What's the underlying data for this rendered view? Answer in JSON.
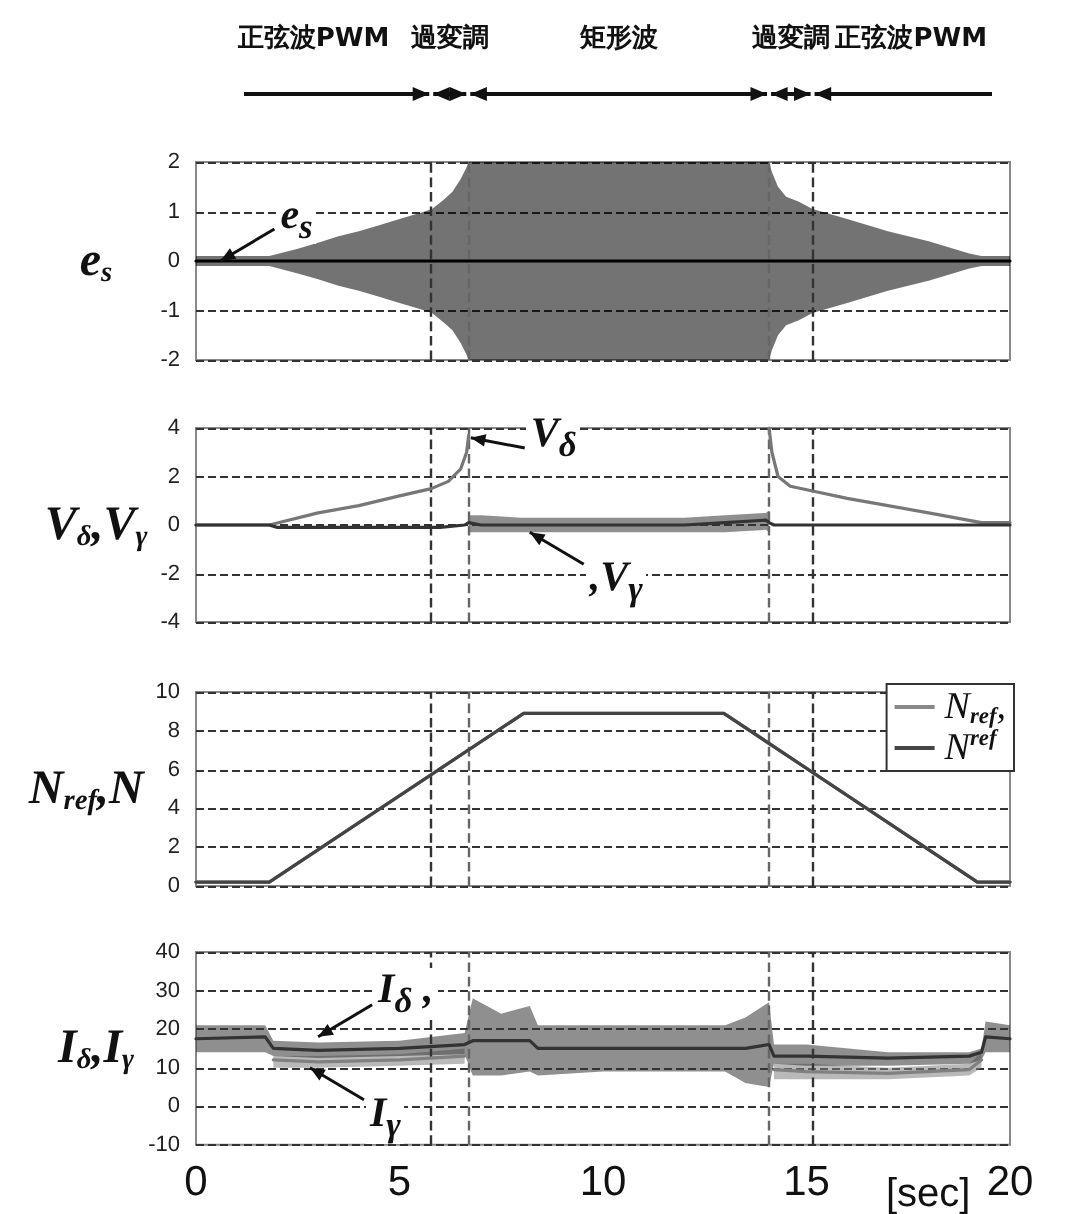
{
  "chart_data": [
    {
      "type": "line",
      "ylabel": "e$_{s}$",
      "xlim": [
        0,
        20
      ],
      "ylim": [
        -2,
        2
      ],
      "xticks": [
        0,
        5,
        10,
        15,
        20
      ],
      "yticks": [
        -2,
        -1,
        0,
        1,
        2
      ],
      "tick_labels": "y",
      "grid": "y",
      "marker": "none",
      "annotations": [
        "正弦波PWM",
        "過変調",
        "矩形波",
        "過変調",
        "正弦波PWM",
        {
          "text": "e$_{s}$",
          "x": 0.6,
          "y": 0
        }
      ],
      "ref_lines": [
        {
          "axis": "x",
          "value": 5.78,
          "line_style": "dashed",
          "color": "#333333"
        },
        {
          "axis": "x",
          "value": 6.69,
          "line_style": "dashed",
          "color": "#666666"
        },
        {
          "axis": "x",
          "value": 14.08,
          "line_style": "dashed",
          "color": "#666666"
        },
        {
          "axis": "x",
          "value": 15.15,
          "line_style": "dashed",
          "color": "#333333"
        }
      ],
      "series": [
        {
          "color": "#000000",
          "x": [
            0,
            1.8,
            2.5,
            3,
            3.5,
            4,
            4.5,
            5,
            5.5,
            5.8,
            6.1,
            6.3,
            6.5,
            6.65,
            6.7,
            14.08,
            14.15,
            14.3,
            14.5,
            14.8,
            15.15,
            16,
            17,
            18,
            19,
            19.3,
            20
          ],
          "values": [
            0,
            0,
            0,
            0,
            0,
            0,
            0,
            0,
            0,
            0,
            0,
            0,
            0,
            0,
            0,
            0,
            0,
            0,
            0,
            0,
            0,
            0,
            0,
            0,
            0,
            0,
            0
          ],
          "upper": [
            0.1,
            0.1,
            0.25,
            0.37,
            0.5,
            0.6,
            0.72,
            0.85,
            0.97,
            1.05,
            1.25,
            1.4,
            1.65,
            1.9,
            2,
            2,
            1.8,
            1.5,
            1.3,
            1.2,
            1.05,
            0.85,
            0.6,
            0.4,
            0.15,
            0.1,
            0.1
          ],
          "lower": [
            -0.1,
            -0.1,
            -0.25,
            -0.37,
            -0.5,
            -0.6,
            -0.72,
            -0.85,
            -0.97,
            -1.05,
            -1.25,
            -1.4,
            -1.65,
            -1.9,
            -2,
            -2,
            -1.8,
            -1.5,
            -1.3,
            -1.2,
            -1.05,
            -0.85,
            -0.6,
            -0.4,
            -0.15,
            -0.1,
            -0.1
          ]
        }
      ]
    },
    {
      "type": "line",
      "ylabel": "V$_{δ}$,V$_{γ}$",
      "xlim": [
        0,
        20
      ],
      "ylim": [
        -4,
        4
      ],
      "xticks": [
        0,
        5,
        10,
        15,
        20
      ],
      "yticks": [
        -4,
        -2,
        0,
        2,
        4
      ],
      "tick_labels": "y",
      "grid": "y",
      "marker": "none",
      "annotations": [
        {
          "text": "V$_{δ}$",
          "x": 6.75,
          "y": 3.6
        },
        {
          "text": ",V$_{γ}$",
          "x": 8.2,
          "y": -0.3
        }
      ],
      "ref_lines": [
        {
          "axis": "x",
          "value": 5.78,
          "line_style": "dashed",
          "color": "#333333"
        },
        {
          "axis": "x",
          "value": 6.69,
          "line_style": "dashed",
          "color": "#666666"
        },
        {
          "axis": "x",
          "value": 14.08,
          "line_style": "dashed",
          "color": "#666666"
        },
        {
          "axis": "x",
          "value": 15.15,
          "line_style": "dashed",
          "color": "#333333"
        }
      ],
      "series": [
        {
          "color": "#777777",
          "x": [
            0,
            1.8,
            3,
            4,
            5,
            5.78,
            6.2,
            6.5,
            6.65,
            6.7,
            10,
            14.08,
            14.15,
            14.3,
            14.6,
            15.15,
            16,
            17,
            18,
            19.3,
            20
          ],
          "values": [
            0,
            0,
            0.5,
            0.8,
            1.2,
            1.5,
            1.8,
            2.3,
            3.0,
            3.7,
            null,
            4,
            3,
            2.0,
            1.6,
            1.4,
            1.1,
            0.8,
            0.5,
            0.1,
            0.1
          ]
        },
        {
          "color": "#333333",
          "x": [
            0,
            1.8,
            2,
            6,
            6.6,
            6.7,
            7,
            8,
            9,
            10,
            11,
            12,
            13,
            14,
            14.08,
            14.2,
            20
          ],
          "values": [
            0,
            0,
            -0.1,
            -0.1,
            0,
            0.1,
            0,
            0,
            0,
            0,
            0,
            0,
            0.1,
            0.2,
            0.1,
            0,
            0
          ],
          "upper": [
            null,
            null,
            null,
            null,
            null,
            0.4,
            0.4,
            0.3,
            0.3,
            0.3,
            0.3,
            0.3,
            0.4,
            0.5,
            0.6,
            null,
            null
          ],
          "lower": [
            null,
            null,
            null,
            null,
            null,
            -0.3,
            -0.3,
            -0.3,
            -0.3,
            -0.3,
            -0.3,
            -0.3,
            -0.3,
            -0.2,
            -0.3,
            null,
            null
          ]
        }
      ]
    },
    {
      "type": "line",
      "ylabel": "N$_{ref}$,N",
      "xlim": [
        0,
        20
      ],
      "ylim": [
        0,
        10
      ],
      "xticks": [
        0,
        5,
        10,
        15,
        20
      ],
      "yticks": [
        0,
        2,
        4,
        6,
        8,
        10
      ],
      "tick_labels": "y",
      "grid": "y",
      "marker": "none",
      "legend": "top right",
      "ref_lines": [
        {
          "axis": "x",
          "value": 5.78,
          "line_style": "dashed",
          "color": "#333333"
        },
        {
          "axis": "x",
          "value": 6.69,
          "line_style": "dashed",
          "color": "#666666"
        },
        {
          "axis": "x",
          "value": 14.08,
          "line_style": "dashed",
          "color": "#666666"
        },
        {
          "axis": "x",
          "value": 15.15,
          "line_style": "dashed",
          "color": "#333333"
        }
      ],
      "series": [
        {
          "name": "N$_{ref}$,",
          "color": "#888888",
          "x": [
            0,
            1.8,
            8.05,
            12.97,
            19.2,
            20
          ],
          "values": [
            0.2,
            0.2,
            8.9,
            8.9,
            0.2,
            0.2
          ]
        },
        {
          "name": "N$^{ref}$",
          "color": "#444444",
          "x": [
            0,
            1.8,
            8.05,
            12.97,
            19.2,
            20
          ],
          "values": [
            0.2,
            0.2,
            8.9,
            8.9,
            0.2,
            0.2
          ]
        }
      ]
    },
    {
      "type": "line",
      "ylabel": "I$_{δ}$,I$_{γ}$",
      "xlabel": "[sec]",
      "xlim": [
        0,
        20
      ],
      "ylim": [
        -10,
        40
      ],
      "xticks": [
        0,
        5,
        10,
        15,
        20
      ],
      "yticks": [
        -10,
        0,
        10,
        20,
        30,
        40
      ],
      "grid": "y",
      "marker": "none",
      "annotations": [
        {
          "text": "I$_{δ}$ ,",
          "x": 3,
          "y": 18
        },
        {
          "text": "I$_{γ}$",
          "x": 2.8,
          "y": 10
        }
      ],
      "ref_lines": [
        {
          "axis": "x",
          "value": 5.78,
          "line_style": "dashed",
          "color": "#333333"
        },
        {
          "axis": "x",
          "value": 6.69,
          "line_style": "dashed",
          "color": "#666666"
        },
        {
          "axis": "x",
          "value": 14.08,
          "line_style": "dashed",
          "color": "#666666"
        },
        {
          "axis": "x",
          "value": 15.15,
          "line_style": "dashed",
          "color": "#333333"
        }
      ],
      "series": [
        {
          "color": "#808080",
          "x": [
            1.9,
            3,
            5,
            6.6,
            10,
            14.2,
            15,
            17,
            19,
            19.3
          ],
          "values": [
            12,
            11.5,
            12,
            13,
            null,
            9.5,
            9,
            8.5,
            9.5,
            12
          ],
          "lower": [
            10,
            10,
            10.5,
            11,
            null,
            7,
            7,
            7,
            8,
            10
          ],
          "upper": [
            13,
            13,
            13.5,
            15,
            null,
            11,
            11,
            10,
            11,
            14
          ]
        },
        {
          "color": "#333333",
          "x": [
            0,
            1.7,
            1.9,
            3,
            5,
            6.6,
            6.8,
            7.5,
            8.2,
            8.4,
            10,
            12,
            13,
            13.5,
            14.08,
            14.2,
            15,
            17,
            19,
            19.3,
            19.4,
            20
          ],
          "values": [
            17.5,
            18,
            15,
            14.5,
            15,
            16,
            17,
            17,
            17,
            15,
            15,
            15,
            15,
            15,
            16,
            13,
            13,
            12.5,
            13,
            14,
            18,
            17.5
          ],
          "lower": [
            14,
            14,
            13,
            12.5,
            13,
            13.5,
            8,
            8,
            9,
            8,
            9,
            9,
            9,
            6,
            5,
            11,
            10.5,
            10.5,
            11,
            12,
            14,
            14
          ],
          "upper": [
            21,
            21,
            17,
            16.5,
            17,
            19,
            28,
            24,
            26,
            21,
            21,
            21,
            21,
            23,
            27,
            16,
            16,
            14,
            14,
            15,
            22,
            21
          ]
        }
      ]
    }
  ]
}
